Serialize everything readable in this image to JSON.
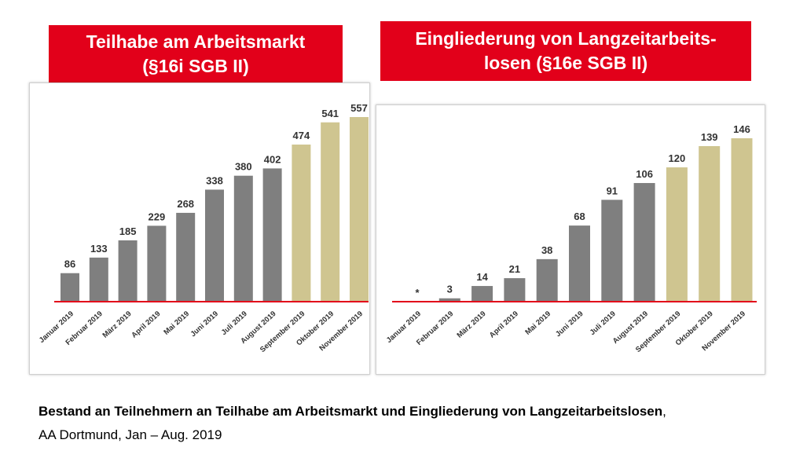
{
  "colors": {
    "title_bg": "#e2001a",
    "title_text": "#ffffff",
    "bar_gray": "#7f7f7f",
    "bar_tan": "#cfc590",
    "baseline": "#e2001a",
    "label_text": "#333333"
  },
  "chart_data": [
    {
      "type": "bar",
      "title_lines": [
        "Teilhabe am Arbeitsmarkt",
        "(§16i SGB II)"
      ],
      "categories": [
        "Januar 2019",
        "Februar 2019",
        "März 2019",
        "April 2019",
        "Mai 2019",
        "Juni 2019",
        "Juli 2019",
        "August 2019",
        "September 2019",
        "Oktober 2019",
        "November 2019"
      ],
      "values": [
        86,
        133,
        185,
        229,
        268,
        338,
        380,
        402,
        474,
        541,
        557
      ],
      "value_labels": [
        "86",
        "133",
        "185",
        "229",
        "268",
        "338",
        "380",
        "402",
        "474",
        "541",
        "557"
      ],
      "bar_colors": [
        "gray",
        "gray",
        "gray",
        "gray",
        "gray",
        "gray",
        "gray",
        "gray",
        "tan",
        "tan",
        "tan"
      ],
      "ylim": [
        0,
        557
      ],
      "grid": false,
      "legend": "none"
    },
    {
      "type": "bar",
      "title_lines": [
        "Eingliederung von Langzeitarbeits-",
        "losen  (§16e SGB II)"
      ],
      "categories": [
        "Januar 2019",
        "Februar 2019",
        "März 2019",
        "April 2019",
        "Mai 2019",
        "Juni 2019",
        "Juli 2019",
        "August 2019",
        "September 2019",
        "Oktober 2019",
        "November 2019"
      ],
      "values": [
        0,
        3,
        14,
        21,
        38,
        68,
        91,
        106,
        120,
        139,
        146
      ],
      "value_labels": [
        "*",
        "3",
        "14",
        "21",
        "38",
        "68",
        "91",
        "106",
        "120",
        "139",
        "146"
      ],
      "bar_colors": [
        "gray",
        "gray",
        "gray",
        "gray",
        "gray",
        "gray",
        "gray",
        "gray",
        "tan",
        "tan",
        "tan"
      ],
      "ylim": [
        0,
        146
      ],
      "grid": false,
      "legend": "none"
    }
  ],
  "caption": {
    "line1_bold": "Bestand an Teilnehmern an Teilhabe am Arbeitsmarkt und Eingliederung von Langzeitarbeitslosen",
    "line1_tail": ",",
    "line2": "AA Dortmund, Jan – Aug. 2019"
  }
}
